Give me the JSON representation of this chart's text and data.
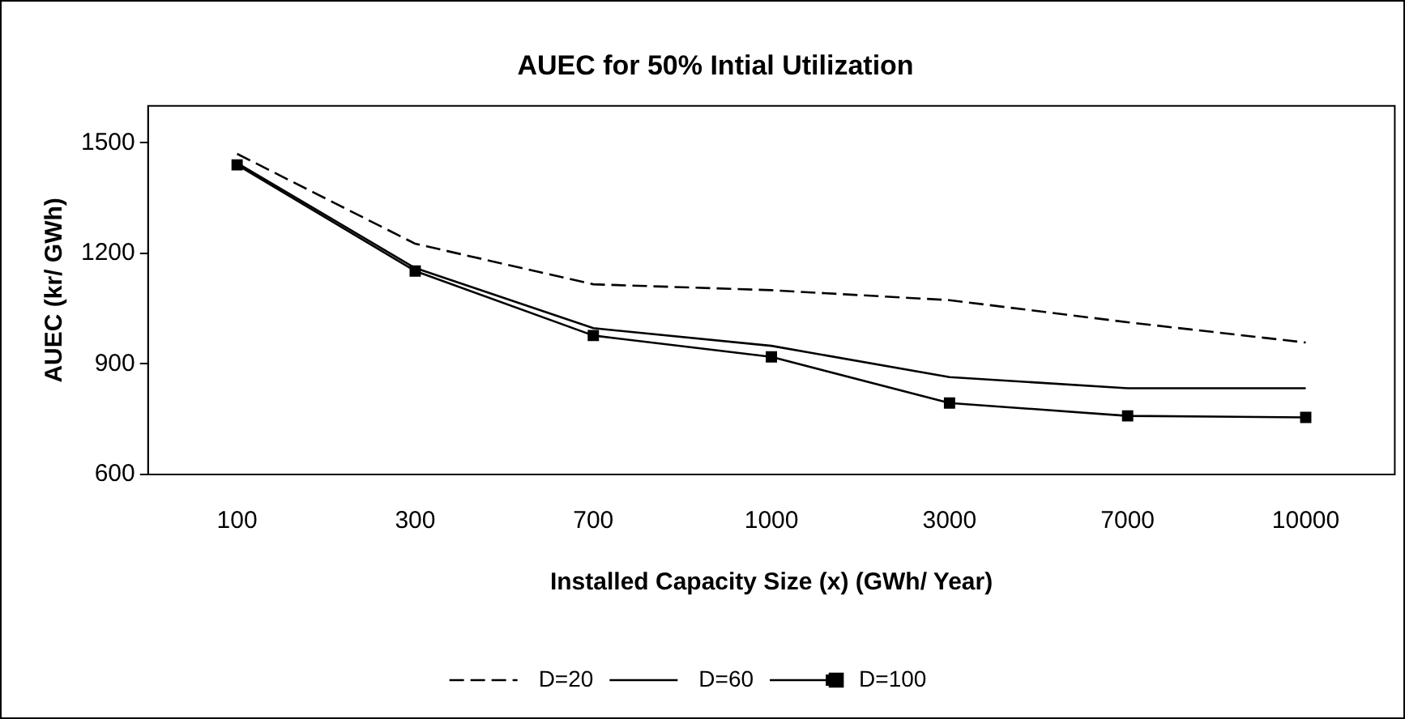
{
  "chart_data": {
    "type": "line",
    "title": "AUEC for 50% Intial Utilization",
    "xlabel": "Installed Capacity Size (x) (GWh/ Year)",
    "ylabel": "AUEC (kr/ GWh)",
    "categories": [
      "100",
      "300",
      "700",
      "1000",
      "3000",
      "7000",
      "10000"
    ],
    "ylim": [
      600,
      1600
    ],
    "yticks": [
      600,
      900,
      1200,
      1500
    ],
    "grid": false,
    "legend": "bottom",
    "series": [
      {
        "name": "D=20",
        "color": "#000000",
        "line_style": "dashed",
        "marker": "none",
        "values": [
          1470,
          1226,
          1116,
          1100,
          1073,
          1013,
          958
        ]
      },
      {
        "name": "D=60",
        "color": "#000000",
        "line_style": "solid",
        "marker": "none",
        "values": [
          1445,
          1160,
          997,
          949,
          864,
          834,
          834
        ]
      },
      {
        "name": "D=100",
        "color": "#000000",
        "line_style": "solid",
        "marker": "square",
        "values": [
          1440,
          1152,
          977,
          919,
          794,
          759,
          755
        ]
      }
    ]
  }
}
